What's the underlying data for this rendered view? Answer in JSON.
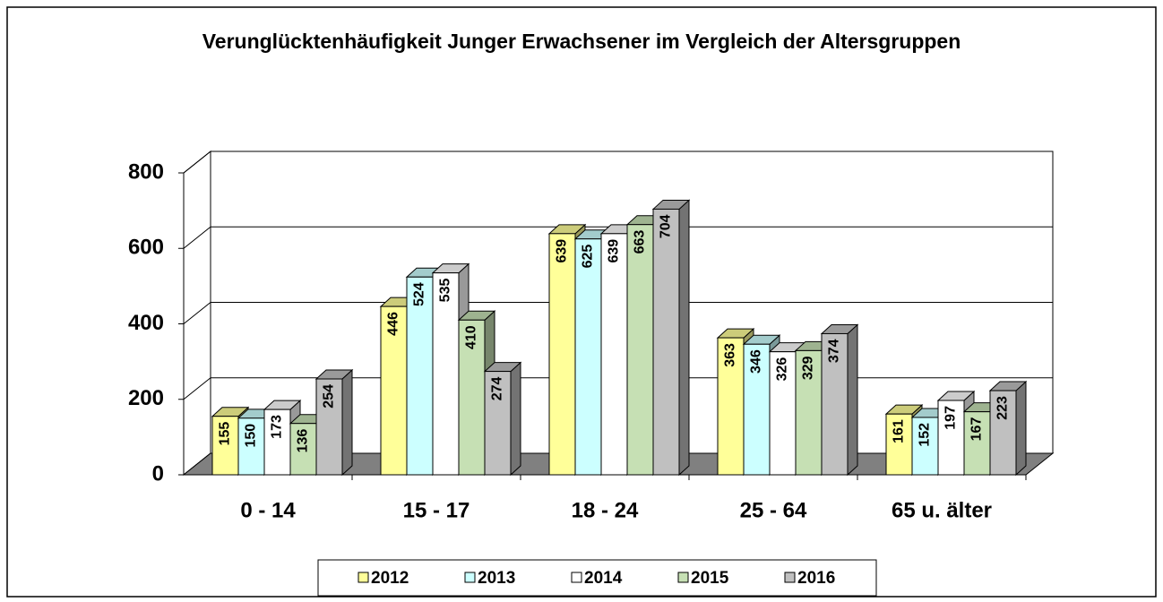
{
  "chart_data": {
    "type": "bar",
    "title": "Verunglücktenhäufigkeit Junger Erwachsener im Vergleich der Altersgruppen",
    "categories": [
      "0 - 14",
      "15 - 17",
      "18 - 24",
      "25 - 64",
      "65 u. älter"
    ],
    "series": [
      {
        "name": "2012",
        "color": "#ffff99",
        "values": [
          155,
          446,
          639,
          363,
          161
        ]
      },
      {
        "name": "2013",
        "color": "#ccffff",
        "values": [
          150,
          524,
          625,
          346,
          152
        ]
      },
      {
        "name": "2014",
        "color": "#ffffff",
        "values": [
          173,
          535,
          639,
          326,
          197
        ]
      },
      {
        "name": "2015",
        "color": "#c6e0b4",
        "values": [
          136,
          410,
          663,
          329,
          167
        ]
      },
      {
        "name": "2016",
        "color": "#c0c0c0",
        "values": [
          254,
          274,
          704,
          374,
          223
        ]
      }
    ],
    "ylim": [
      0,
      800
    ],
    "yticks": [
      0,
      200,
      400,
      600,
      800
    ],
    "grid": true
  }
}
